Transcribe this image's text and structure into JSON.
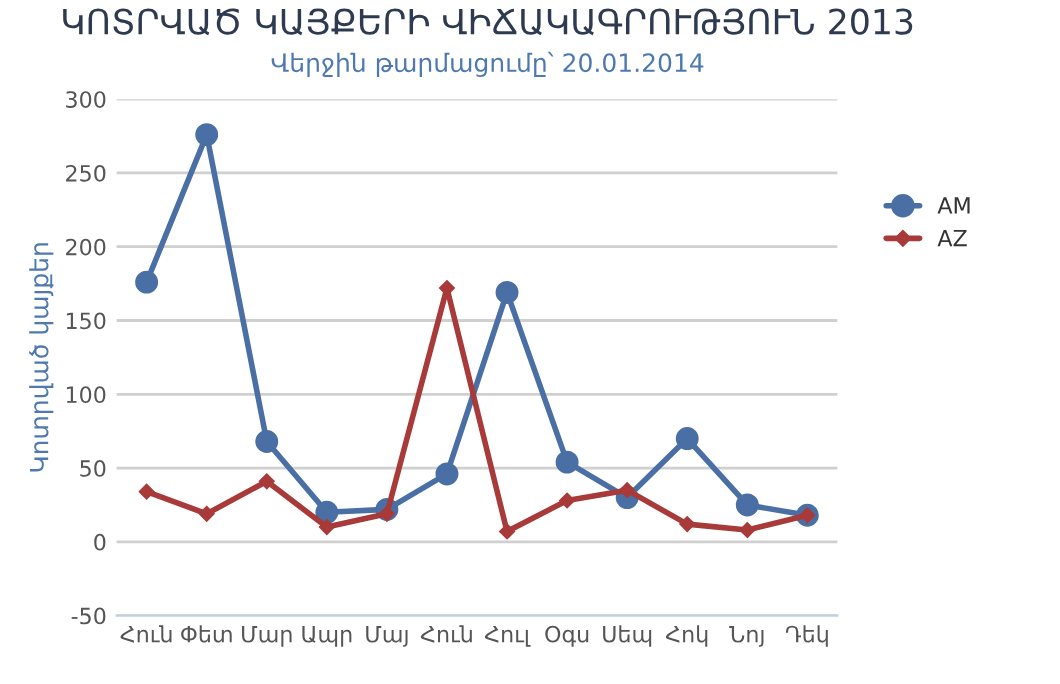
{
  "chart_data": {
    "type": "line",
    "title": "ԿՈՏՐՎԱԾ ԿԱՅՔԵՐԻ ՎԻՃԱԿԱԳՐՈՒԹՅՈՒՆ 2013",
    "subtitle": "Վերջին թարմացումը՝ 20.01.2014",
    "ylabel": "Կոտրված կայքեր",
    "categories": [
      "Հուն",
      "Փետ",
      "Մար",
      "Ապր",
      "Մայ",
      "Հուն",
      "Հուլ",
      "Օգս",
      "Սեպ",
      "Հոկ",
      "Նոյ",
      "Դեկ"
    ],
    "series": [
      {
        "name": "AM",
        "color": "#4a6fa5",
        "marker": "circle",
        "values": [
          176,
          276,
          68,
          20,
          22,
          46,
          169,
          54,
          30,
          70,
          25,
          18
        ]
      },
      {
        "name": "AZ",
        "color": "#a83a3a",
        "marker": "diamond",
        "values": [
          34,
          19,
          41,
          10,
          19,
          172,
          7,
          28,
          35,
          12,
          8,
          18
        ]
      }
    ],
    "ylim": [
      -50,
      300
    ],
    "yticks": [
      -50,
      0,
      50,
      100,
      150,
      200,
      250,
      300
    ],
    "grid": "y",
    "legend": "top right",
    "line_style": "solid"
  }
}
